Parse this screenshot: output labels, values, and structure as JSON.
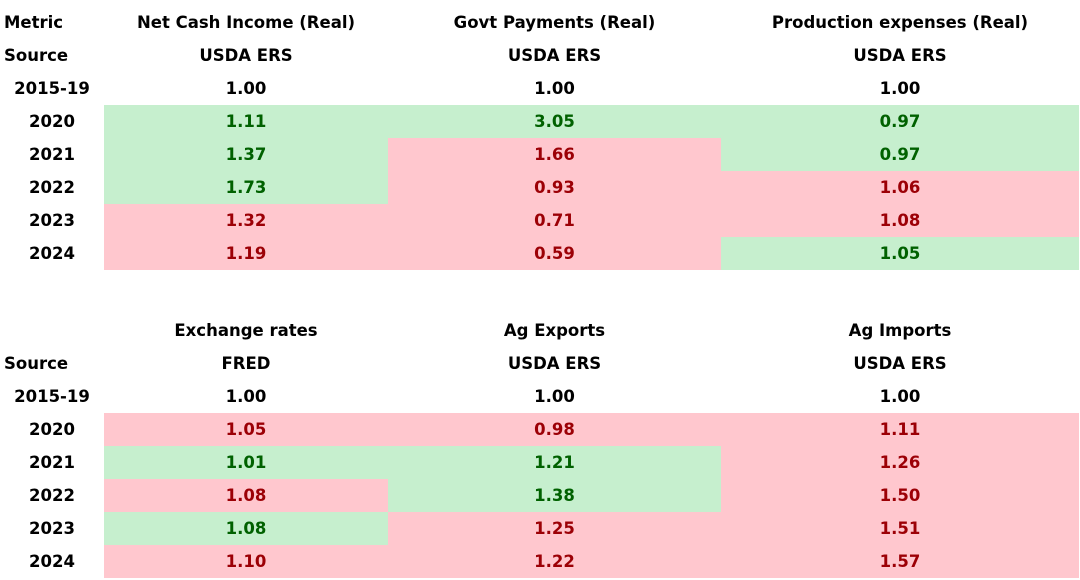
{
  "top_table": {
    "header_row": {
      "metric_label": "Metric",
      "columns": [
        "Net Cash Income (Real)",
        "Govt Payments (Real)",
        "Production expenses (Real)"
      ]
    },
    "source_row": {
      "source_label": "Source",
      "sources": [
        "USDA ERS",
        "USDA ERS",
        "USDA ERS"
      ]
    },
    "rows": [
      {
        "year": "2015-19",
        "values": [
          "1.00",
          "1.00",
          "1.00"
        ],
        "status": [
          "neutral",
          "neutral",
          "neutral"
        ]
      },
      {
        "year": "2020",
        "values": [
          "1.11",
          "3.05",
          "0.97"
        ],
        "status": [
          "good",
          "good",
          "good"
        ]
      },
      {
        "year": "2021",
        "values": [
          "1.37",
          "1.66",
          "0.97"
        ],
        "status": [
          "good",
          "bad",
          "good"
        ]
      },
      {
        "year": "2022",
        "values": [
          "1.73",
          "0.93",
          "1.06"
        ],
        "status": [
          "good",
          "bad",
          "bad"
        ]
      },
      {
        "year": "2023",
        "values": [
          "1.32",
          "0.71",
          "1.08"
        ],
        "status": [
          "bad",
          "bad",
          "bad"
        ]
      },
      {
        "year": "2024",
        "values": [
          "1.19",
          "0.59",
          "1.05"
        ],
        "status": [
          "bad",
          "bad",
          "good"
        ]
      }
    ]
  },
  "bottom_table": {
    "header_row": {
      "metric_label": "",
      "columns": [
        "Exchange rates",
        "Ag Exports",
        "Ag Imports"
      ]
    },
    "source_row": {
      "source_label": "Source",
      "sources": [
        "FRED",
        "USDA ERS",
        "USDA ERS"
      ]
    },
    "rows": [
      {
        "year": "2015-19",
        "values": [
          "1.00",
          "1.00",
          "1.00"
        ],
        "status": [
          "neutral",
          "neutral",
          "neutral"
        ]
      },
      {
        "year": "2020",
        "values": [
          "1.05",
          "0.98",
          "1.11"
        ],
        "status": [
          "bad",
          "bad",
          "bad"
        ]
      },
      {
        "year": "2021",
        "values": [
          "1.01",
          "1.21",
          "1.26"
        ],
        "status": [
          "good",
          "good",
          "bad"
        ]
      },
      {
        "year": "2022",
        "values": [
          "1.08",
          "1.38",
          "1.50"
        ],
        "status": [
          "bad",
          "good",
          "bad"
        ]
      },
      {
        "year": "2023",
        "values": [
          "1.08",
          "1.25",
          "1.51"
        ],
        "status": [
          "good",
          "bad",
          "bad"
        ]
      },
      {
        "year": "2024",
        "values": [
          "1.10",
          "1.22",
          "1.57"
        ],
        "status": [
          "bad",
          "bad",
          "bad"
        ]
      }
    ]
  },
  "colors": {
    "good_fill": "#c6efce",
    "good_text": "#006100",
    "bad_fill": "#ffc7ce",
    "bad_text": "#9c0006",
    "neutral_text": "#000000"
  }
}
